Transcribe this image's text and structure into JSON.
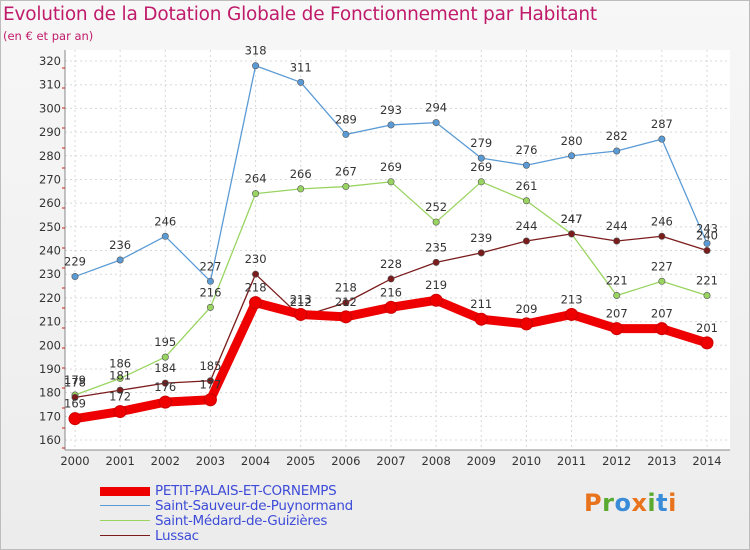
{
  "title": "Evolution de la Dotation Globale de Fonctionnement par Habitant",
  "subtitle": "(en € et par an)",
  "logo": {
    "text": "Proxiti",
    "colors": [
      "#e8731c",
      "#5aaa32",
      "#3a8cd8",
      "#e8731c",
      "#5aaa32",
      "#3a8cd8",
      "#e8731c"
    ]
  },
  "chart_data": {
    "type": "line",
    "title": "Evolution de la Dotation Globale de Fonctionnement par Habitant",
    "subtitle": "(en € et par an)",
    "x": [
      "2000",
      "2001",
      "2002",
      "2003",
      "2004",
      "2005",
      "2006",
      "2007",
      "2008",
      "2009",
      "2010",
      "2011",
      "2012",
      "2013",
      "2014"
    ],
    "ylim": [
      160,
      320
    ],
    "yticks": [
      160,
      170,
      180,
      190,
      200,
      210,
      220,
      230,
      240,
      250,
      260,
      270,
      280,
      290,
      300,
      310,
      320
    ],
    "grid": true,
    "legend_position": "bottom-left",
    "series": [
      {
        "name": "PETIT-PALAIS-ET-CORNEMPS",
        "color": "#ee0000",
        "values": [
          169,
          172,
          176,
          177,
          218,
          213,
          212,
          216,
          219,
          211,
          209,
          213,
          207,
          207,
          201
        ]
      },
      {
        "name": "Saint-Sauveur-de-Puynormand",
        "color": "#5b9bd5",
        "values": [
          229,
          236,
          246,
          227,
          318,
          311,
          289,
          293,
          294,
          279,
          276,
          280,
          282,
          287,
          243
        ]
      },
      {
        "name": "Saint-Médard-de-Guizières",
        "color": "#99d460",
        "values": [
          179,
          186,
          195,
          216,
          264,
          266,
          267,
          269,
          252,
          269,
          261,
          247,
          221,
          227,
          221
        ]
      },
      {
        "name": "Lussac",
        "color": "#7b1c1c",
        "values": [
          178,
          181,
          184,
          185,
          230,
          212,
          218,
          228,
          235,
          239,
          244,
          247,
          244,
          246,
          240
        ]
      }
    ]
  }
}
